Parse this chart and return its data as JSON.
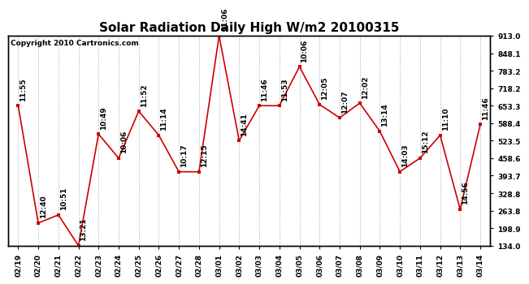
{
  "title": "Solar Radiation Daily High W/m2 20100315",
  "copyright": "Copyright 2010 Cartronics.com",
  "dates": [
    "02/19",
    "02/20",
    "02/21",
    "02/22",
    "02/23",
    "02/24",
    "02/25",
    "02/26",
    "02/27",
    "02/28",
    "03/01",
    "03/02",
    "03/03",
    "03/04",
    "03/05",
    "03/06",
    "03/07",
    "03/08",
    "03/09",
    "03/10",
    "03/11",
    "03/12",
    "03/13",
    "03/14"
  ],
  "values": [
    653.3,
    218.0,
    248.0,
    134.0,
    548.0,
    458.6,
    633.0,
    543.5,
    408.0,
    408.0,
    913.0,
    523.5,
    653.3,
    653.3,
    798.0,
    658.0,
    608.4,
    663.0,
    558.4,
    408.6,
    458.6,
    543.5,
    268.8,
    583.4
  ],
  "time_labels": [
    "11:55",
    "12:40",
    "10:51",
    "13:21",
    "10:49",
    "10:06",
    "11:52",
    "11:14",
    "10:17",
    "12:15",
    "11:06",
    "14:41",
    "11:46",
    "11:53",
    "10:06",
    "12:05",
    "12:07",
    "12:02",
    "13:14",
    "14:03",
    "15:12",
    "11:10",
    "14:56",
    "11:46"
  ],
  "ylim": [
    134.0,
    913.0
  ],
  "yticks": [
    134.0,
    198.9,
    263.8,
    328.8,
    393.7,
    458.6,
    523.5,
    588.4,
    653.3,
    718.2,
    783.2,
    848.1,
    913.0
  ],
  "line_color": "#cc0000",
  "marker_color": "#cc0000",
  "bg_color": "#ffffff",
  "grid_color": "#bbbbbb",
  "title_fontsize": 11,
  "annotation_fontsize": 6.5,
  "tick_fontsize": 6.5,
  "copyright_fontsize": 6.5
}
